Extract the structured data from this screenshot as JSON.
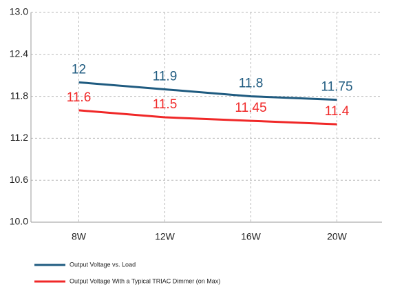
{
  "chart_data": {
    "type": "line",
    "categories": [
      "8W",
      "12W",
      "16W",
      "20W"
    ],
    "series": [
      {
        "name": "Output Voltage vs. Load",
        "color": "#1f5b80",
        "values": [
          12,
          11.9,
          11.8,
          11.75
        ]
      },
      {
        "name": "Output Voltage With a Typical TRIAC Dimmer (on Max)",
        "color": "#f02828",
        "values": [
          11.6,
          11.5,
          11.45,
          11.4
        ]
      }
    ],
    "ylim": [
      10.0,
      13.0
    ],
    "yticks": [
      {
        "value": 10.0,
        "label": "10.0"
      },
      10.6,
      11.2,
      11.8,
      12.4,
      {
        "value": 13.0,
        "label": "13.0"
      }
    ],
    "grid": true
  }
}
